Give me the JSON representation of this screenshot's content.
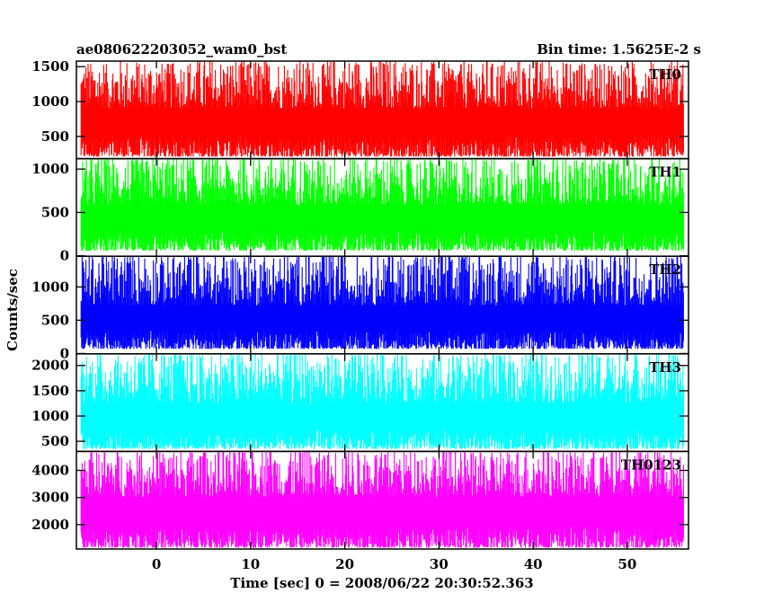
{
  "chart_data": {
    "type": "line",
    "title_left": "ae080622203052_wam0_bst",
    "title_right": "Bin time: 1.5625E-2 s",
    "xlabel": "Time [sec] 0 = 2008/06/22 20:30:52.363",
    "ylabel": "Counts/sec",
    "xlim": [
      -8.5,
      56.5
    ],
    "data_range": [
      -8,
      56
    ],
    "x_ticks": [
      0,
      10,
      20,
      30,
      40,
      50
    ],
    "panels": [
      {
        "name": "TH0",
        "color": "#ff0000",
        "ylim": [
          180,
          1580
        ],
        "yticks": [
          500,
          1000,
          1500
        ],
        "base": 210,
        "mid": 760,
        "peak": 1540
      },
      {
        "name": "TH1",
        "color": "#00ff00",
        "ylim": [
          -5,
          1120
        ],
        "yticks": [
          0,
          500,
          1000
        ],
        "base": 60,
        "mid": 470,
        "peak": 1100
      },
      {
        "name": "TH2",
        "color": "#0000ff",
        "ylim": [
          -5,
          1460
        ],
        "yticks": [
          0,
          500,
          1000
        ],
        "base": 70,
        "mid": 560,
        "peak": 1450
      },
      {
        "name": "TH3",
        "color": "#00ffff",
        "ylim": [
          300,
          2230
        ],
        "yticks": [
          500,
          1000,
          1500,
          2000
        ],
        "base": 350,
        "mid": 1050,
        "peak": 2200
      },
      {
        "name": "TH0123",
        "color": "#ff00ff",
        "ylim": [
          1100,
          4700
        ],
        "yticks": [
          2000,
          3000,
          4000
        ],
        "base": 1150,
        "mid": 2650,
        "peak": 4650
      }
    ],
    "grid": false,
    "legend": "none"
  }
}
